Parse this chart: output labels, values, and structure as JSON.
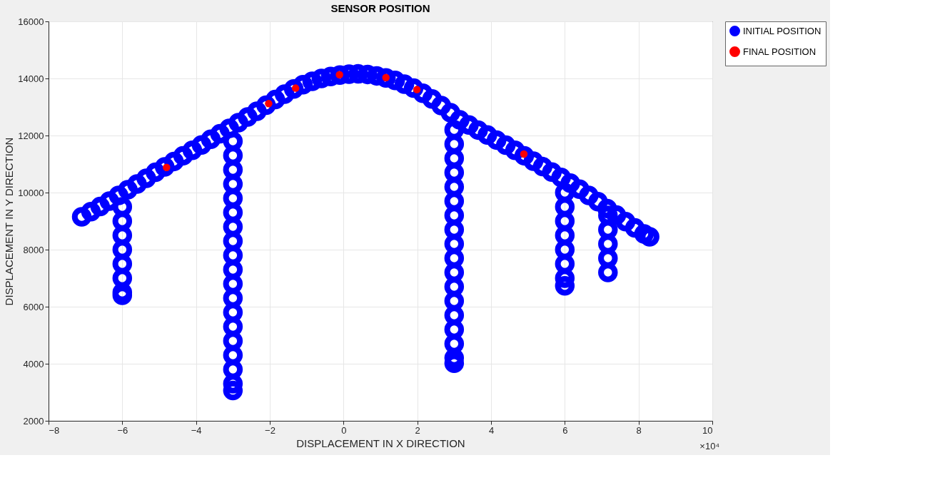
{
  "chart_data": {
    "type": "scatter",
    "title": "SENSOR POSITION",
    "xlabel": "DISPLACEMENT IN X DIRECTION",
    "ylabel": "DISPLACEMENT IN Y DIRECTION",
    "xlim": [
      -8,
      10
    ],
    "xticks": [
      -8,
      -6,
      -4,
      -2,
      0,
      2,
      4,
      6,
      8,
      10
    ],
    "ylim": [
      2000,
      16000
    ],
    "yticks": [
      2000,
      4000,
      6000,
      8000,
      10000,
      12000,
      14000,
      16000
    ],
    "grid": true,
    "legend": "top right",
    "marker": "circle",
    "annotations": [
      "×10⁴"
    ],
    "series": [
      {
        "name": "INITIAL POSITION",
        "color": "#0000ff",
        "x": [
          -7.1,
          -6.85,
          -6.6,
          -6.35,
          -6.1,
          -5.85,
          -5.6,
          -5.35,
          -5.1,
          -4.85,
          -4.6,
          -4.35,
          -4.1,
          -3.85,
          -3.6,
          -3.35,
          -3.1,
          -2.85,
          -2.6,
          -2.35,
          -2.1,
          -1.85,
          -1.6,
          -1.35,
          -1.1,
          -0.85,
          -0.6,
          -0.35,
          -0.1,
          0.15,
          0.4,
          0.65,
          0.9,
          1.15,
          1.4,
          1.65,
          1.9,
          2.15,
          2.4,
          2.65,
          2.9,
          3.15,
          3.4,
          3.65,
          3.9,
          4.15,
          4.4,
          4.65,
          4.9,
          5.15,
          5.4,
          5.65,
          5.9,
          6.15,
          6.4,
          6.65,
          6.9,
          7.15,
          7.4,
          7.65,
          7.9,
          8.15,
          8.3,
          -6,
          -6,
          -6,
          -6,
          -6,
          -6,
          -6,
          -6,
          -3,
          -3,
          -3,
          -3,
          -3,
          -3,
          -3,
          -3,
          -3,
          -3,
          -3,
          -3,
          -3,
          -3,
          -3,
          -3,
          -3,
          -3,
          -3,
          3,
          3,
          3,
          3,
          3,
          3,
          3,
          3,
          3,
          3,
          3,
          3,
          3,
          3,
          3,
          3,
          3,
          3,
          6,
          6,
          6,
          6,
          6,
          6,
          6,
          6,
          7.17,
          7.17,
          7.17,
          7.17,
          7.17
        ],
        "values": [
          9150,
          9330,
          9510,
          9700,
          9900,
          10100,
          10300,
          10500,
          10710,
          10900,
          11090,
          11290,
          11480,
          11670,
          11870,
          12060,
          12250,
          12450,
          12650,
          12850,
          13060,
          13260,
          13450,
          13630,
          13780,
          13900,
          14000,
          14070,
          14120,
          14150,
          14160,
          14140,
          14090,
          14020,
          13930,
          13800,
          13660,
          13480,
          13280,
          13050,
          12800,
          12550,
          12370,
          12190,
          12020,
          11840,
          11660,
          11480,
          11290,
          11100,
          10910,
          10720,
          10530,
          10330,
          10120,
          9900,
          9680,
          9440,
          9210,
          8980,
          8760,
          8550,
          8450,
          9500,
          9000,
          8500,
          8000,
          7500,
          7000,
          6500,
          6400,
          11800,
          11300,
          10800,
          10300,
          9800,
          9300,
          8800,
          8300,
          7800,
          7300,
          6800,
          6300,
          5800,
          5300,
          4800,
          4300,
          3800,
          3300,
          3060,
          12200,
          11700,
          11200,
          10700,
          10200,
          9700,
          9200,
          8700,
          8200,
          7700,
          7200,
          6700,
          6200,
          5700,
          5200,
          4700,
          4200,
          4020,
          10000,
          9500,
          9000,
          8500,
          8000,
          7500,
          7000,
          6730,
          9200,
          8700,
          8200,
          7700,
          7200
        ]
      },
      {
        "name": "FINAL POSITION",
        "color": "#ff0000",
        "x": [
          -4.8,
          -2.03,
          -1.3,
          -0.11,
          1.15,
          1.99,
          4.89
        ],
        "values": [
          10880,
          13120,
          13660,
          14130,
          14030,
          13610,
          11350
        ]
      }
    ]
  }
}
